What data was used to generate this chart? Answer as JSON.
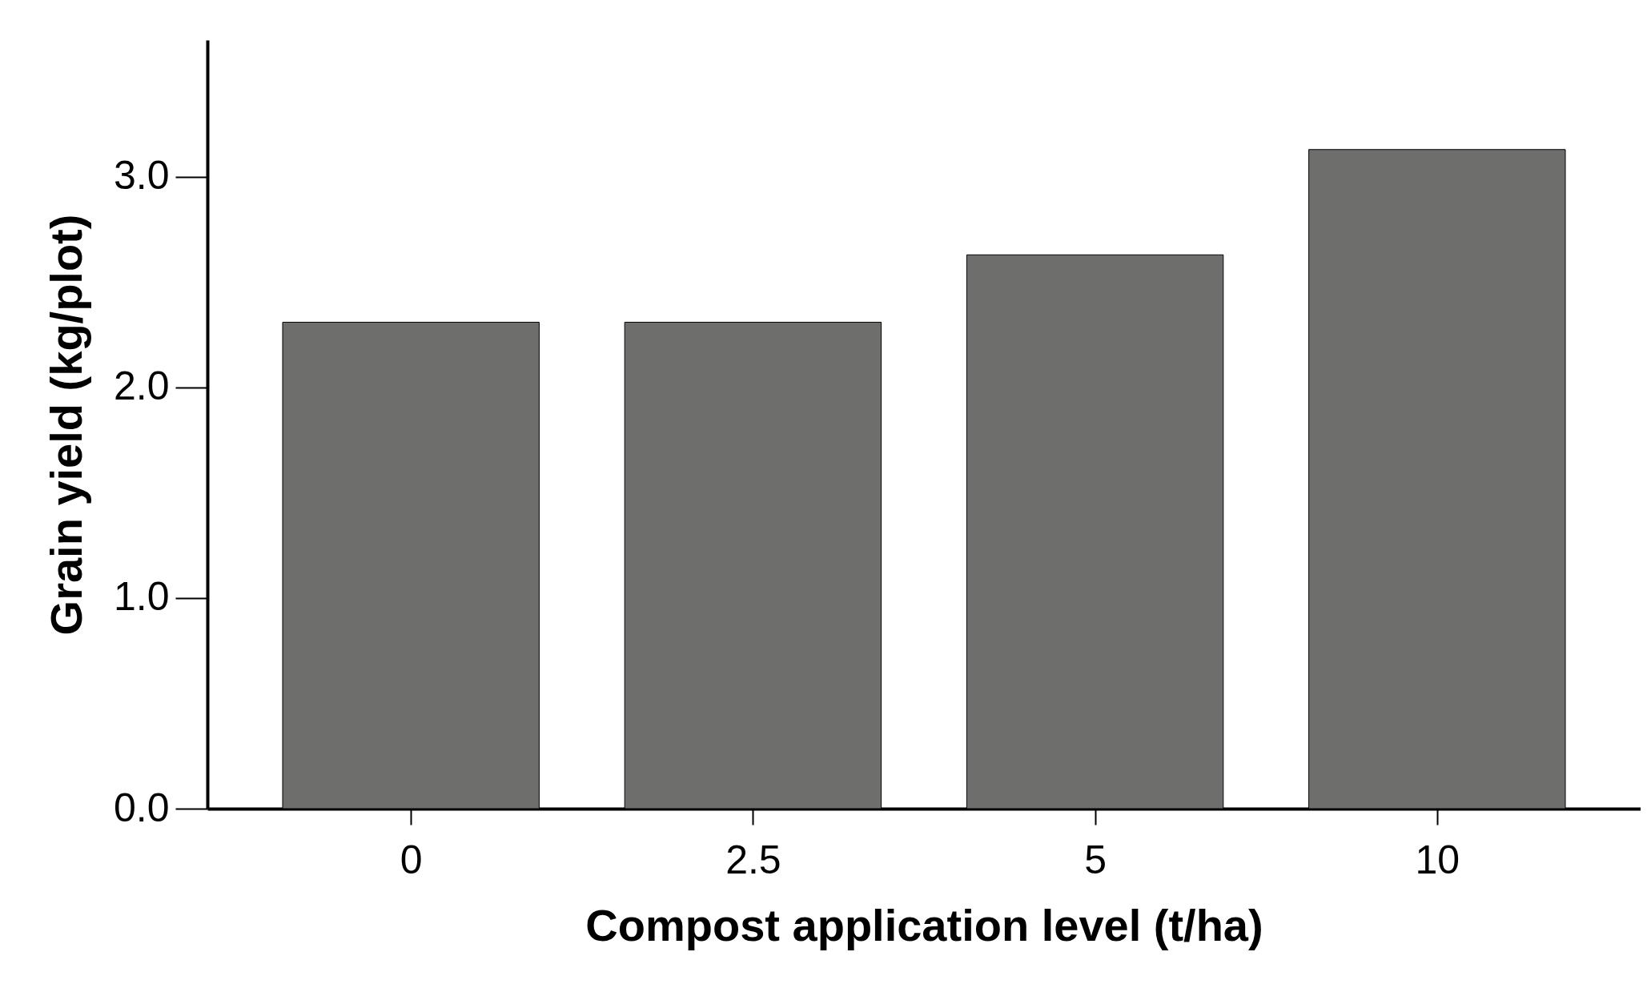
{
  "chart_data": {
    "type": "bar",
    "xlabel": "Compost application level (t/ha)",
    "ylabel": "Grain yield (kg/plot)",
    "categories": [
      "0",
      "2.5",
      "5",
      "10"
    ],
    "values": [
      2.31,
      2.31,
      2.63,
      3.13
    ],
    "color": "#6e6e6d",
    "ylim": [
      0,
      3.65
    ],
    "yticks": [
      {
        "value": 0,
        "label": "0.0"
      },
      {
        "value": 1,
        "label": "1.0"
      },
      {
        "value": 2,
        "label": "2.0"
      },
      {
        "value": 3,
        "label": "3.0"
      }
    ],
    "grid": false
  }
}
